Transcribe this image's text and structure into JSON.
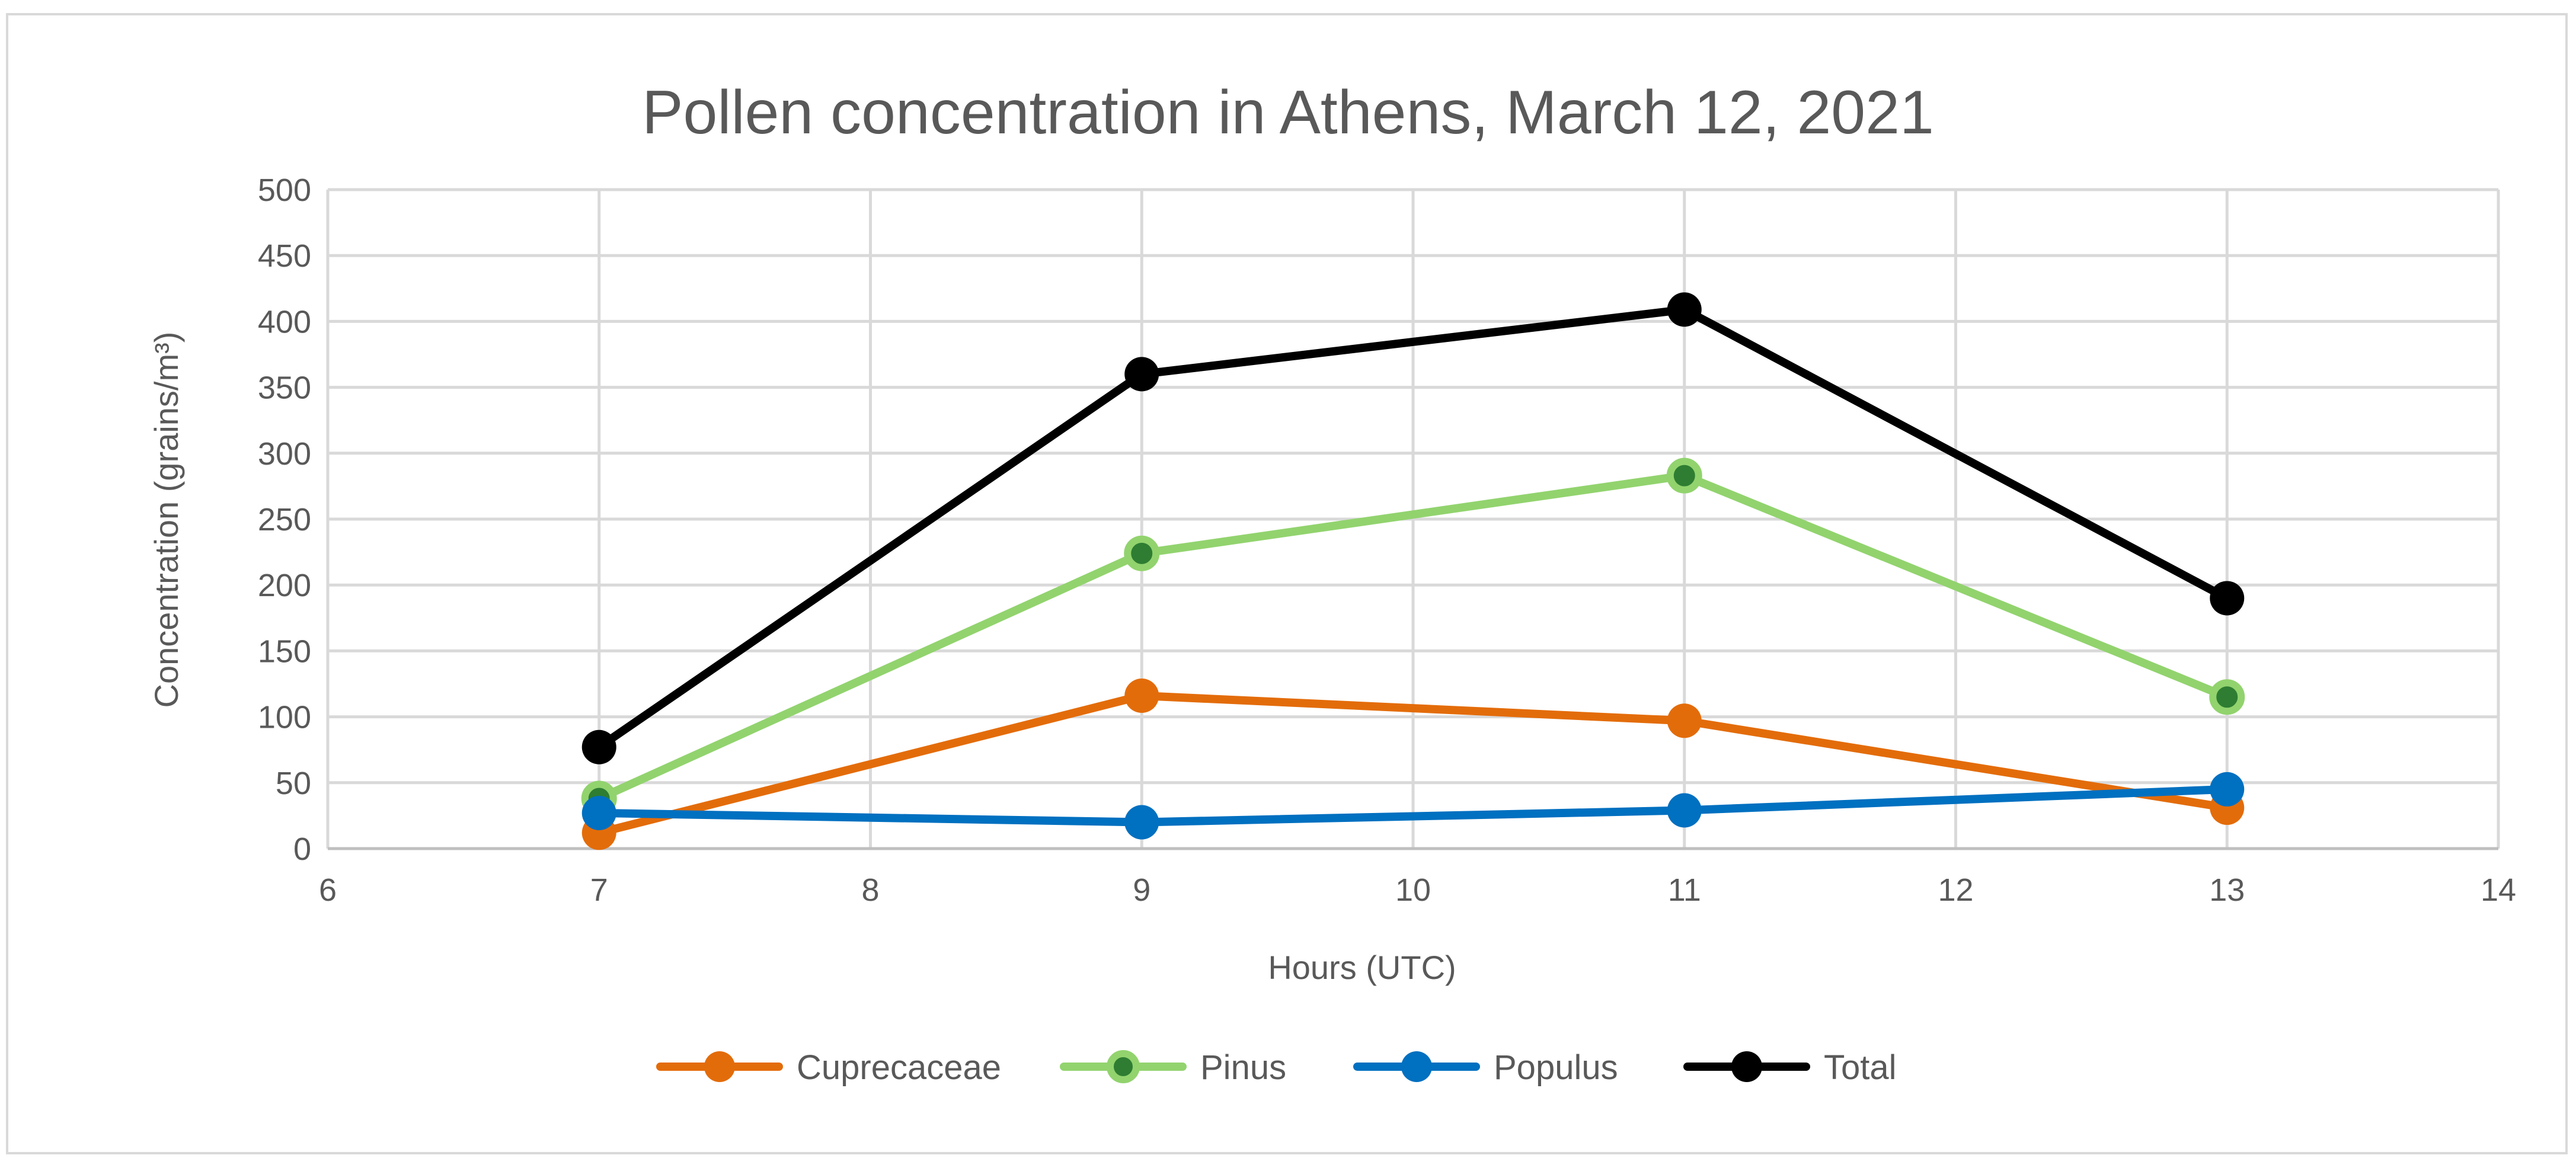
{
  "chart_data": {
    "type": "scatter",
    "mode": "lines+markers",
    "title": "Pollen concentration in Athens, March 12, 2021",
    "xlabel": "Hours (UTC)",
    "ylabel": "Concentration (grains/m³)",
    "xlim": [
      6,
      14
    ],
    "ylim": [
      0,
      500
    ],
    "xticks": [
      6,
      7,
      8,
      9,
      10,
      11,
      12,
      13,
      14
    ],
    "yticks": [
      0,
      50,
      100,
      150,
      200,
      250,
      300,
      350,
      400,
      450,
      500
    ],
    "grid": true,
    "legend_position": "bottom",
    "series": [
      {
        "name": "Cuprecaceae",
        "color": "#e36c0a",
        "marker": "circle",
        "x": [
          7,
          9,
          11,
          13
        ],
        "y": [
          12,
          116,
          97,
          31
        ]
      },
      {
        "name": "Pinus",
        "color": "#92d36e",
        "marker_fill": "#2e7d32",
        "marker": "circle",
        "x": [
          7,
          9,
          11,
          13
        ],
        "y": [
          38,
          224,
          283,
          115
        ]
      },
      {
        "name": "Populus",
        "color": "#0070c0",
        "marker": "circle",
        "x": [
          7,
          9,
          11,
          13
        ],
        "y": [
          27,
          20,
          29,
          45
        ]
      },
      {
        "name": "Total",
        "color": "#000000",
        "marker": "circle",
        "x": [
          7,
          9,
          11,
          13
        ],
        "y": [
          77,
          360,
          409,
          190
        ]
      }
    ]
  }
}
